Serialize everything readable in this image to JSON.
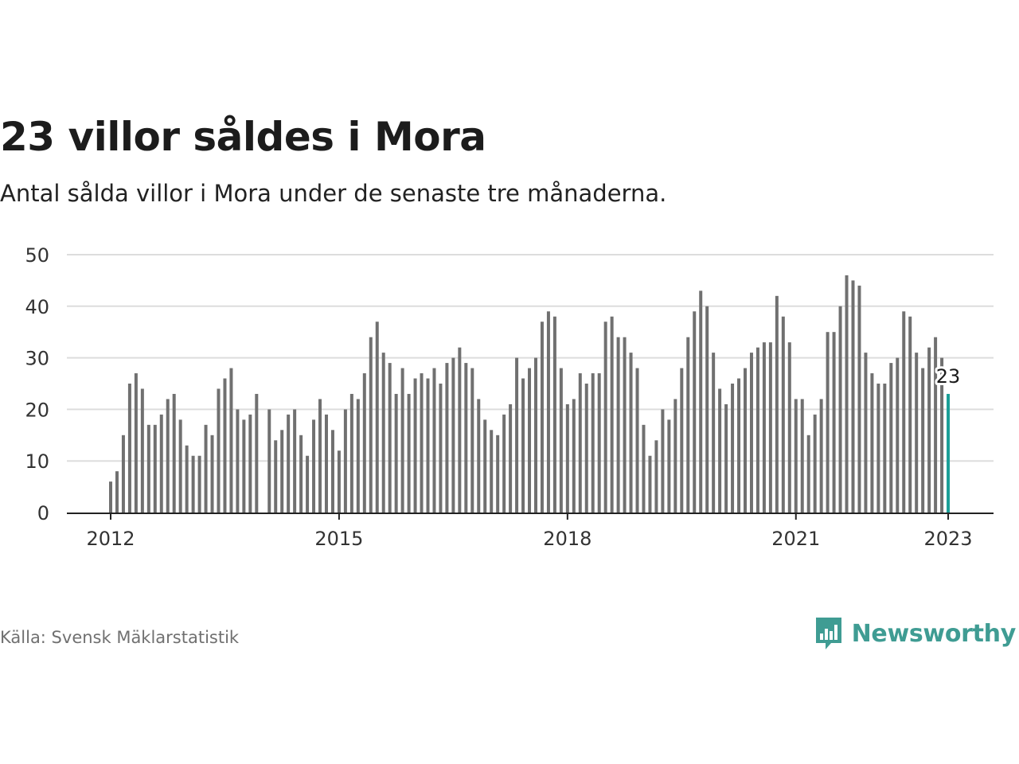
{
  "title": "23 villor såldes i Mora",
  "subtitle": "Antal sålda villor i Mora under de senaste tre månaderna.",
  "source": "Källa: Svensk Mäklarstatistik",
  "brand": {
    "name": "Newsworthy",
    "icon": "newsworthy-chart-bubble-icon"
  },
  "colors": {
    "bar": "#707070",
    "highlight": "#1a9e97",
    "grid": "#dddddd",
    "axis": "#222222"
  },
  "chart_data": {
    "type": "bar",
    "title": "23 villor såldes i Mora",
    "xlabel": "",
    "ylabel": "",
    "ylim": [
      0,
      50
    ],
    "yticks": [
      0,
      10,
      20,
      30,
      40,
      50
    ],
    "xticks": [
      "2012",
      "2015",
      "2018",
      "2021",
      "2023"
    ],
    "grid": true,
    "legend": "none",
    "x_start": "2012-01",
    "x_end": "2023-01",
    "highlight_label": "23",
    "values": [
      6,
      8,
      15,
      25,
      27,
      24,
      17,
      17,
      19,
      22,
      23,
      18,
      13,
      11,
      11,
      17,
      15,
      24,
      26,
      28,
      20,
      18,
      19,
      23,
      null,
      20,
      14,
      16,
      19,
      20,
      15,
      11,
      18,
      22,
      19,
      16,
      12,
      20,
      23,
      22,
      27,
      34,
      37,
      31,
      29,
      23,
      28,
      23,
      26,
      27,
      26,
      28,
      25,
      29,
      30,
      32,
      29,
      28,
      22,
      18,
      16,
      15,
      19,
      21,
      30,
      26,
      28,
      30,
      37,
      39,
      38,
      28,
      21,
      22,
      27,
      25,
      27,
      27,
      37,
      38,
      34,
      34,
      31,
      28,
      17,
      11,
      14,
      20,
      18,
      22,
      28,
      34,
      39,
      43,
      40,
      31,
      24,
      21,
      25,
      26,
      28,
      31,
      32,
      33,
      33,
      42,
      38,
      33,
      22,
      22,
      15,
      19,
      22,
      35,
      35,
      40,
      46,
      45,
      44,
      31,
      27,
      25,
      25,
      29,
      30,
      39,
      38,
      31,
      28,
      32,
      34,
      30,
      23
    ]
  }
}
